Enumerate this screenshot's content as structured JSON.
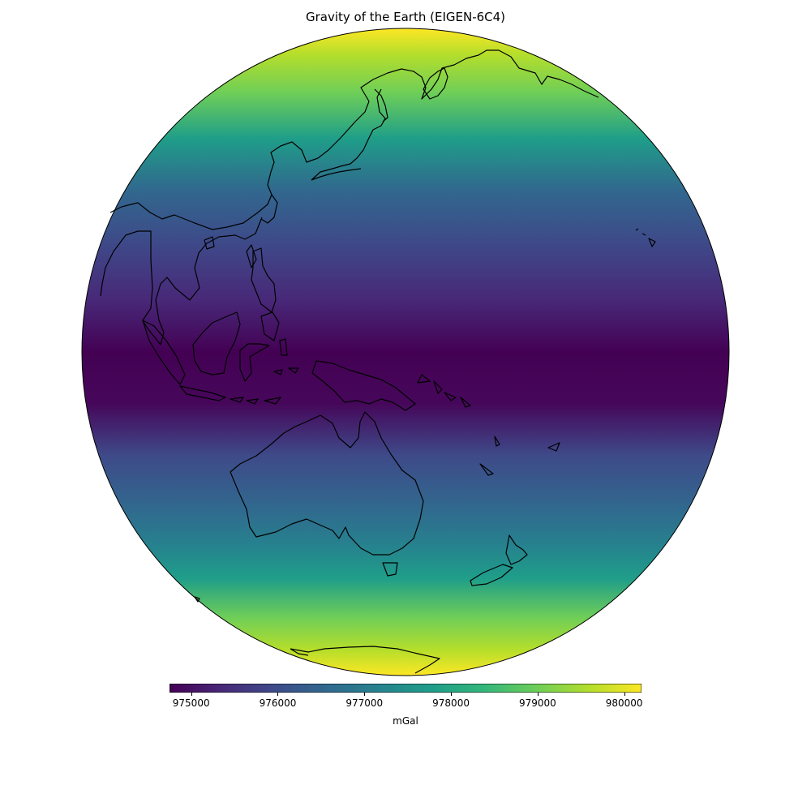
{
  "title": "Gravity of the Earth (EIGEN-6C4)",
  "colorbar": {
    "unit": "mGal",
    "min": 974750,
    "max": 980200,
    "ticks": [
      975000,
      976000,
      977000,
      978000,
      979000,
      980000
    ],
    "tick_labels": [
      "975000",
      "976000",
      "977000",
      "978000",
      "979000",
      "980000"
    ],
    "colormap": "viridis",
    "colors": [
      "#440154",
      "#482878",
      "#3e4a89",
      "#31688e",
      "#26828e",
      "#1f9e89",
      "#35b779",
      "#6ece58",
      "#b5de2b",
      "#fde725"
    ]
  },
  "map": {
    "projection": "orthographic",
    "center_longitude": 150,
    "center_latitude": 0,
    "features": [
      "Asia",
      "Japan",
      "Kamchatka",
      "Philippines",
      "Borneo",
      "New Guinea",
      "Australia",
      "Tasmania",
      "New Zealand",
      "Antarctica",
      "Hawaii",
      "Solomon Islands",
      "Vanuatu",
      "Fiji",
      "New Caledonia"
    ]
  }
}
